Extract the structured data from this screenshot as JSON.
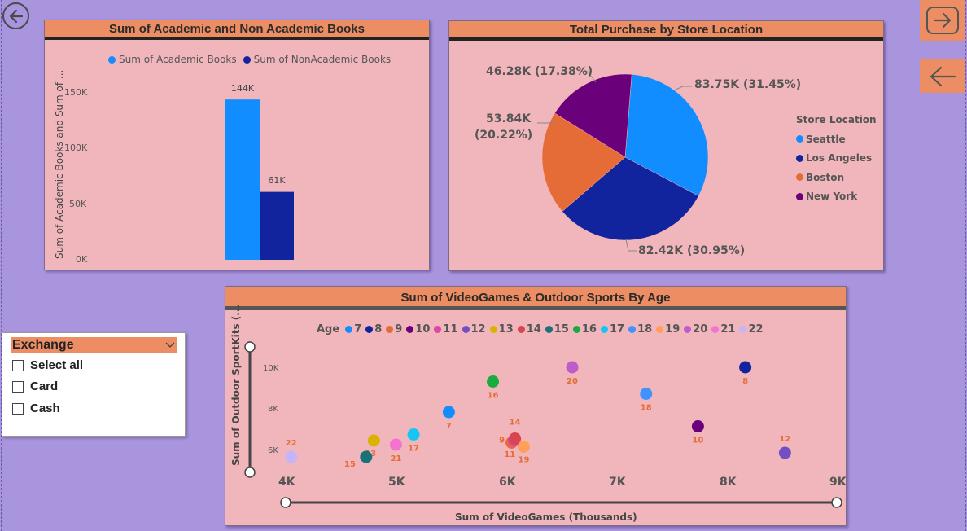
{
  "nav": {
    "back_circle_icon": "arrow-left-circle-icon",
    "forward_icon": "arrow-right-box-icon",
    "back_icon": "arrow-left-icon",
    "accent": "#ec8d63"
  },
  "books_chart": {
    "title": "Sum of Academic and Non Academic Books",
    "legend": [
      "Sum of Academic Books",
      "Sum of NonAcademic Books"
    ],
    "ylabel": "Sum of Academic Books and Sum of ...",
    "yticks": [
      "150K",
      "100K",
      "50K",
      "0K"
    ],
    "data_labels": [
      "144K",
      "61K"
    ]
  },
  "store_chart": {
    "title": "Total Purchase by Store Location",
    "legend_title": "Store Location",
    "legend": [
      "Seattle",
      "Los Angeles",
      "Boston",
      "New York"
    ],
    "labels": {
      "seattle": "83.75K (31.45%)",
      "la": "82.42K (30.95%)",
      "boston_1": "53.84K",
      "boston_2": "(20.22%)",
      "ny": "46.28K (17.38%)"
    }
  },
  "scatter_chart": {
    "title": "Sum of VideoGames & Outdoor Sports By Age",
    "legend_title": "Age",
    "xlabel": "Sum of VideoGames (Thousands)",
    "ylabel": "Sum of Outdoor SportKits (...",
    "xticks": [
      "4K",
      "5K",
      "6K",
      "7K",
      "8K",
      "9K"
    ],
    "yticks": [
      "10K",
      "8K",
      "6K"
    ]
  },
  "slicer": {
    "title": "Exchange",
    "items": [
      "Select all",
      "Card",
      "Cash"
    ]
  },
  "chart_data": [
    {
      "type": "bar",
      "title": "Sum of Academic and Non Academic Books",
      "ylabel": "Sum of Academic Books and Sum of ...",
      "ylim": [
        0,
        150000
      ],
      "series": [
        {
          "name": "Sum of Academic Books",
          "values": [
            144000
          ],
          "color": "#118dff"
        },
        {
          "name": "Sum of NonAcademic Books",
          "values": [
            61000
          ],
          "color": "#12239e"
        }
      ]
    },
    {
      "type": "pie",
      "title": "Total Purchase by Store Location",
      "slices": [
        {
          "name": "Seattle",
          "value": 83.75,
          "percent": 31.45,
          "color": "#118dff"
        },
        {
          "name": "Los Angeles",
          "value": 82.42,
          "percent": 30.95,
          "color": "#12239e"
        },
        {
          "name": "Boston",
          "value": 53.84,
          "percent": 20.22,
          "color": "#e66c37"
        },
        {
          "name": "New York",
          "value": 46.28,
          "percent": 17.38,
          "color": "#6b007b"
        }
      ]
    },
    {
      "type": "scatter",
      "title": "Sum of VideoGames & Outdoor Sports By Age",
      "xlabel": "Sum of VideoGames (Thousands)",
      "ylabel": "Sum of Outdoor SportKits (...",
      "xlim": [
        4000,
        9000
      ],
      "ylim": [
        5000,
        11000
      ],
      "points": [
        {
          "age": "7",
          "x": 5480,
          "y": 7800,
          "color": "#118dff"
        },
        {
          "age": "8",
          "x": 8170,
          "y": 10000,
          "color": "#12239e"
        },
        {
          "age": "9",
          "x": 6050,
          "y": 6300,
          "color": "#e66c37"
        },
        {
          "age": "10",
          "x": 7740,
          "y": 7100,
          "color": "#6b007b"
        },
        {
          "age": "11",
          "x": 6070,
          "y": 6400,
          "color": "#e044a7"
        },
        {
          "age": "12",
          "x": 8530,
          "y": 5800,
          "color": "#744ec2"
        },
        {
          "age": "13",
          "x": 4800,
          "y": 6400,
          "color": "#d9b300"
        },
        {
          "age": "14",
          "x": 6080,
          "y": 6500,
          "color": "#d64550"
        },
        {
          "age": "15",
          "x": 4730,
          "y": 5600,
          "color": "#197278"
        },
        {
          "age": "16",
          "x": 5880,
          "y": 9300,
          "color": "#1aab40"
        },
        {
          "age": "17",
          "x": 5160,
          "y": 6700,
          "color": "#15c6f4"
        },
        {
          "age": "18",
          "x": 7270,
          "y": 8700,
          "color": "#4092ff"
        },
        {
          "age": "19",
          "x": 6160,
          "y": 6100,
          "color": "#ffa058"
        },
        {
          "age": "20",
          "x": 6600,
          "y": 10000,
          "color": "#be5dc9"
        },
        {
          "age": "21",
          "x": 5000,
          "y": 6200,
          "color": "#f472d0"
        },
        {
          "age": "22",
          "x": 4050,
          "y": 5600,
          "color": "#c5b4fa"
        }
      ]
    }
  ]
}
